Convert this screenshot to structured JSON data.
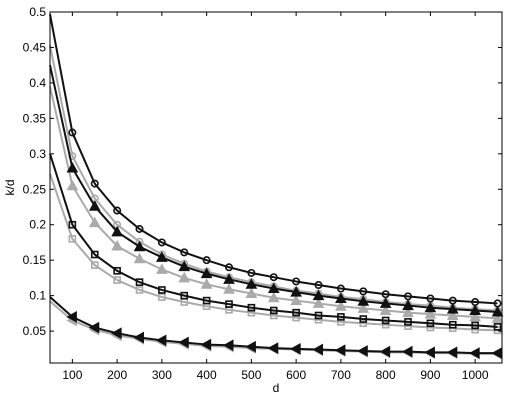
{
  "chart_data": {
    "type": "line",
    "title": "",
    "xlabel": "d",
    "ylabel": "k/d",
    "xlim": [
      50,
      1060
    ],
    "ylim": [
      0.005,
      0.5
    ],
    "grid": false,
    "legend": "none",
    "x_ticks": [
      100,
      200,
      300,
      400,
      500,
      600,
      700,
      800,
      900,
      1000
    ],
    "x_tick_labels": [
      "100",
      "200",
      "300",
      "400",
      "500",
      "600",
      "700",
      "800",
      "900",
      "1000"
    ],
    "y_ticks": [
      0.05,
      0.1,
      0.15,
      0.2,
      0.25,
      0.3,
      0.35,
      0.4,
      0.45,
      0.5
    ],
    "y_tick_labels": [
      "0.05",
      "0.1",
      "0.15",
      "0.2",
      "0.25",
      "0.3",
      "0.35",
      "0.4",
      "0.45",
      "0.5"
    ],
    "x": [
      50,
      100,
      150,
      200,
      250,
      300,
      350,
      400,
      450,
      500,
      550,
      600,
      650,
      700,
      750,
      800,
      850,
      900,
      950,
      1000,
      1050
    ],
    "series": [
      {
        "color": "#111111",
        "marker": "circle",
        "values": [
          0.497,
          0.33,
          0.258,
          0.22,
          0.194,
          0.175,
          0.161,
          0.15,
          0.14,
          0.132,
          0.126,
          0.12,
          0.115,
          0.11,
          0.106,
          0.102,
          0.099,
          0.096,
          0.093,
          0.091,
          0.089
        ]
      },
      {
        "color": "#aaaaaa",
        "marker": "circle",
        "values": [
          0.453,
          0.297,
          0.237,
          0.2,
          0.176,
          0.158,
          0.145,
          0.134,
          0.126,
          0.119,
          0.113,
          0.107,
          0.103,
          0.098,
          0.095,
          0.091,
          0.088,
          0.086,
          0.083,
          0.081,
          0.079
        ]
      },
      {
        "color": "#111111",
        "marker": "triangle-up",
        "values": [
          0.425,
          0.28,
          0.226,
          0.19,
          0.169,
          0.154,
          0.141,
          0.131,
          0.123,
          0.116,
          0.11,
          0.105,
          0.1,
          0.096,
          0.092,
          0.089,
          0.086,
          0.083,
          0.081,
          0.079,
          0.077
        ]
      },
      {
        "color": "#aaaaaa",
        "marker": "triangle-up",
        "values": [
          0.395,
          0.255,
          0.203,
          0.17,
          0.152,
          0.137,
          0.125,
          0.116,
          0.109,
          0.103,
          0.097,
          0.093,
          0.089,
          0.085,
          0.082,
          0.079,
          0.076,
          0.074,
          0.072,
          0.07,
          0.068
        ]
      },
      {
        "color": "#111111",
        "marker": "square",
        "values": [
          0.3,
          0.2,
          0.158,
          0.135,
          0.119,
          0.108,
          0.1,
          0.093,
          0.088,
          0.083,
          0.079,
          0.076,
          0.072,
          0.07,
          0.067,
          0.065,
          0.063,
          0.061,
          0.059,
          0.058,
          0.056
        ]
      },
      {
        "color": "#aaaaaa",
        "marker": "square",
        "values": [
          0.272,
          0.18,
          0.143,
          0.122,
          0.108,
          0.098,
          0.091,
          0.085,
          0.08,
          0.076,
          0.072,
          0.069,
          0.066,
          0.063,
          0.061,
          0.059,
          0.057,
          0.055,
          0.054,
          0.052,
          0.051
        ]
      },
      {
        "color": "#111111",
        "marker": "triangle-left",
        "values": [
          0.098,
          0.07,
          0.055,
          0.047,
          0.041,
          0.037,
          0.034,
          0.031,
          0.03,
          0.028,
          0.026,
          0.025,
          0.024,
          0.023,
          0.022,
          0.021,
          0.021,
          0.02,
          0.02,
          0.019,
          0.019
        ]
      },
      {
        "color": "#aaaaaa",
        "marker": "triangle-left",
        "values": [
          0.092,
          0.065,
          0.052,
          0.044,
          0.039,
          0.035,
          0.032,
          0.029,
          0.028,
          0.026,
          0.025,
          0.024,
          0.023,
          0.022,
          0.021,
          0.02,
          0.02,
          0.019,
          0.019,
          0.018,
          0.018
        ]
      }
    ]
  }
}
